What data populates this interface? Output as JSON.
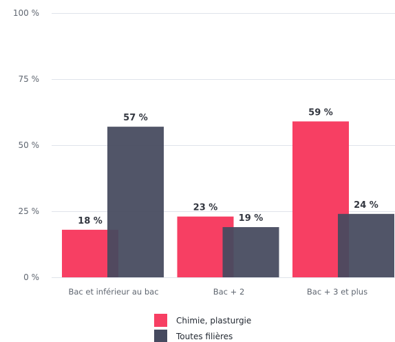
{
  "chart_data": {
    "type": "bar",
    "categories": [
      "Bac et inférieur au bac",
      "Bac + 2",
      "Bac + 3 et plus"
    ],
    "series": [
      {
        "name": "Chimie, plasturgie",
        "values": [
          18,
          23,
          59
        ],
        "labels": [
          "18 %",
          "23 %",
          "59 %"
        ],
        "color": "#f73f63"
      },
      {
        "name": "Toutes filières",
        "values": [
          57,
          19,
          24
        ],
        "labels": [
          "57 %",
          "19 %",
          "24 %"
        ],
        "color": "#464a5f"
      }
    ],
    "ylim": [
      0,
      100
    ],
    "yticks": [
      0,
      25,
      50,
      75,
      100
    ],
    "ytick_labels": [
      "0 %",
      "25 %",
      "50 %",
      "75 %",
      "100 %"
    ],
    "grid": true,
    "legend_position": "bottom-center",
    "title": "",
    "xlabel": "",
    "ylabel": ""
  }
}
